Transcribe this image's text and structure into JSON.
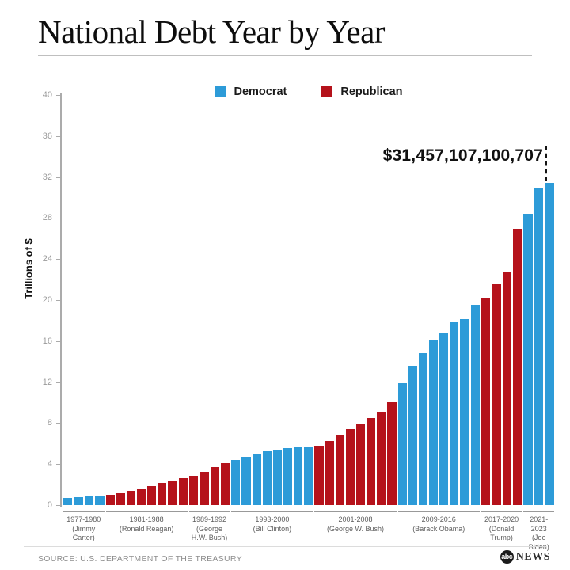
{
  "title": "National Debt Year by Year",
  "legend": [
    {
      "label": "Democrat",
      "color": "#2D9BD8"
    },
    {
      "label": "Republican",
      "color": "#B5121B"
    }
  ],
  "annotation": {
    "text": "$31,457,107,100,707"
  },
  "footer": {
    "source": "SOURCE: U.S. DEPARTMENT OF THE TREASURY",
    "logo_abc": "abc",
    "logo_news": "NEWS"
  },
  "chart_data": {
    "type": "bar",
    "title": "National Debt Year by Year",
    "xlabel": "",
    "ylabel": "Trillions of $",
    "ylim": [
      0,
      40
    ],
    "yticks": [
      0,
      4,
      8,
      12,
      16,
      20,
      24,
      28,
      32,
      36,
      40
    ],
    "grid": false,
    "legend_position": "top-center",
    "colors": {
      "Democrat": "#2D9BD8",
      "Republican": "#B5121B"
    },
    "annotation": {
      "text": "$31,457,107,100,707",
      "year": 2023,
      "value_trillions": 31.457107100707
    },
    "groups": [
      {
        "years": "1977-1980",
        "president": "(Jimmy Carter)",
        "party": "Democrat",
        "values": [
          0.7,
          0.77,
          0.83,
          0.91
        ]
      },
      {
        "years": "1981-1988",
        "president": "(Ronald Reagan)",
        "party": "Republican",
        "values": [
          1.0,
          1.14,
          1.38,
          1.57,
          1.82,
          2.13,
          2.35,
          2.6
        ]
      },
      {
        "years": "1989-1992",
        "president": "(George H.W. Bush)",
        "party": "Republican",
        "values": [
          2.86,
          3.23,
          3.67,
          4.06
        ]
      },
      {
        "years": "1993-2000",
        "president": "(Bill Clinton)",
        "party": "Democrat",
        "values": [
          4.41,
          4.69,
          4.97,
          5.22,
          5.41,
          5.53,
          5.66,
          5.67
        ]
      },
      {
        "years": "2001-2008",
        "president": "(George W. Bush)",
        "party": "Republican",
        "values": [
          5.81,
          6.23,
          6.78,
          7.38,
          7.93,
          8.51,
          9.01,
          10.02
        ]
      },
      {
        "years": "2009-2016",
        "president": "(Barack Obama)",
        "party": "Democrat",
        "values": [
          11.91,
          13.56,
          14.79,
          16.07,
          16.74,
          17.82,
          18.15,
          19.57
        ]
      },
      {
        "years": "2017-2020",
        "president": "(Donald Trump)",
        "party": "Republican",
        "values": [
          20.24,
          21.52,
          22.72,
          26.95
        ]
      },
      {
        "years": "2021-2023",
        "president": "(Joe Biden)",
        "party": "Democrat",
        "values": [
          28.43,
          30.93,
          31.46
        ]
      }
    ]
  }
}
